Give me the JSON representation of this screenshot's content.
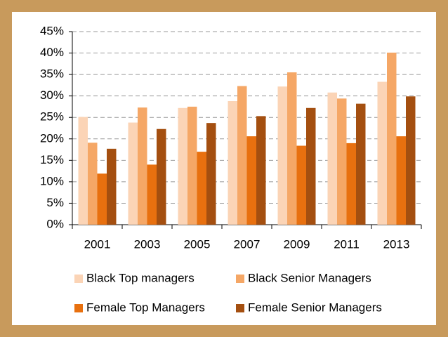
{
  "chart_data": {
    "type": "bar",
    "categories": [
      "2001",
      "2003",
      "2005",
      "2007",
      "2009",
      "2011",
      "2013"
    ],
    "series": [
      {
        "name": "Black Top managers",
        "color": "#fbd4b6",
        "values": [
          25.1,
          23.8,
          27.2,
          28.8,
          32.2,
          30.8,
          33.3
        ]
      },
      {
        "name": "Black Senior Managers",
        "color": "#f5a766",
        "values": [
          19.1,
          27.3,
          27.5,
          32.3,
          35.5,
          29.4,
          40.1
        ]
      },
      {
        "name": "Female Top Managers",
        "color": "#e8700f",
        "values": [
          11.9,
          14.0,
          17.0,
          20.6,
          18.4,
          19.0,
          20.6
        ]
      },
      {
        "name": "Female Senior Managers",
        "color": "#a44f10",
        "values": [
          17.7,
          22.3,
          23.7,
          25.3,
          27.2,
          28.2,
          29.9
        ]
      }
    ],
    "ylim": [
      0,
      45
    ],
    "yticks": [
      {
        "value": 0,
        "label": "0%"
      },
      {
        "value": 5,
        "label": "5%"
      },
      {
        "value": 10,
        "label": "10%"
      },
      {
        "value": 15,
        "label": "15%"
      },
      {
        "value": 20,
        "label": "20%"
      },
      {
        "value": 25,
        "label": "25%"
      },
      {
        "value": 30,
        "label": "30%"
      },
      {
        "value": 35,
        "label": "35%"
      },
      {
        "value": 40,
        "label": "40%"
      },
      {
        "value": 45,
        "label": "45%"
      }
    ],
    "grid": true,
    "legend": "bottom"
  }
}
